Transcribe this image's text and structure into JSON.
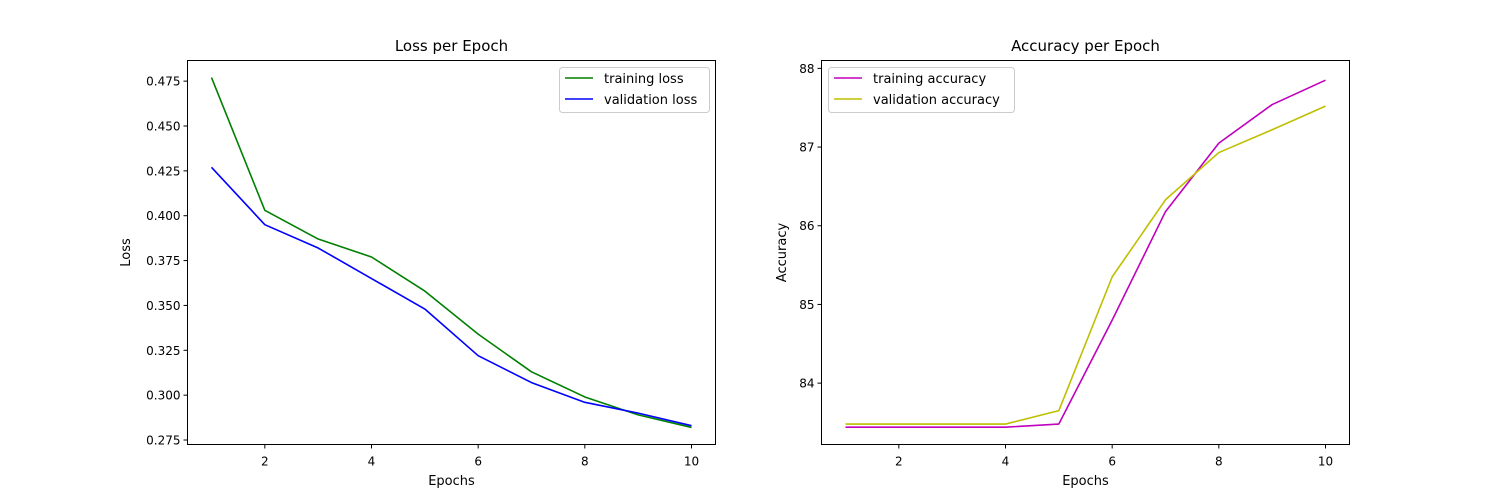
{
  "chart_data": [
    {
      "type": "line",
      "title": "Loss per Epoch",
      "xlabel": "Epochs",
      "ylabel": "Loss",
      "xlim": [
        0.55,
        10.45
      ],
      "ylim": [
        0.2725,
        0.4865
      ],
      "xticks": [
        2,
        4,
        6,
        8,
        10
      ],
      "yticks": [
        0.275,
        0.3,
        0.325,
        0.35,
        0.375,
        0.4,
        0.425,
        0.45,
        0.475
      ],
      "ytick_labels": [
        "0.275",
        "0.300",
        "0.325",
        "0.350",
        "0.375",
        "0.400",
        "0.425",
        "0.450",
        "0.475"
      ],
      "legend_position": "upper right",
      "grid": false,
      "x": [
        1,
        2,
        3,
        4,
        5,
        6,
        7,
        8,
        9,
        10
      ],
      "series": [
        {
          "name": "training loss",
          "color": "#008000",
          "values": [
            0.477,
            0.403,
            0.387,
            0.377,
            0.358,
            0.334,
            0.313,
            0.299,
            0.289,
            0.282
          ]
        },
        {
          "name": "validation loss",
          "color": "#0000ff",
          "values": [
            0.427,
            0.395,
            0.382,
            0.365,
            0.348,
            0.322,
            0.307,
            0.296,
            0.29,
            0.283
          ]
        }
      ]
    },
    {
      "type": "line",
      "title": "Accuracy per Epoch",
      "xlabel": "Epochs",
      "ylabel": "Accuracy",
      "xlim": [
        0.55,
        10.45
      ],
      "ylim": [
        83.22,
        88.1
      ],
      "xticks": [
        2,
        4,
        6,
        8,
        10
      ],
      "yticks": [
        84,
        85,
        86,
        87,
        88
      ],
      "ytick_labels": [
        "84",
        "85",
        "86",
        "87",
        "88"
      ],
      "legend_position": "upper left",
      "grid": false,
      "x": [
        1,
        2,
        3,
        4,
        5,
        6,
        7,
        8,
        9,
        10
      ],
      "series": [
        {
          "name": "training accuracy",
          "color": "#bf00bf",
          "values": [
            83.44,
            83.44,
            83.44,
            83.44,
            83.48,
            84.8,
            86.18,
            87.05,
            87.54,
            87.85
          ]
        },
        {
          "name": "validation accuracy",
          "color": "#bfbf00",
          "values": [
            83.48,
            83.48,
            83.48,
            83.48,
            83.65,
            85.35,
            86.33,
            86.93,
            87.22,
            87.52
          ]
        }
      ]
    }
  ]
}
